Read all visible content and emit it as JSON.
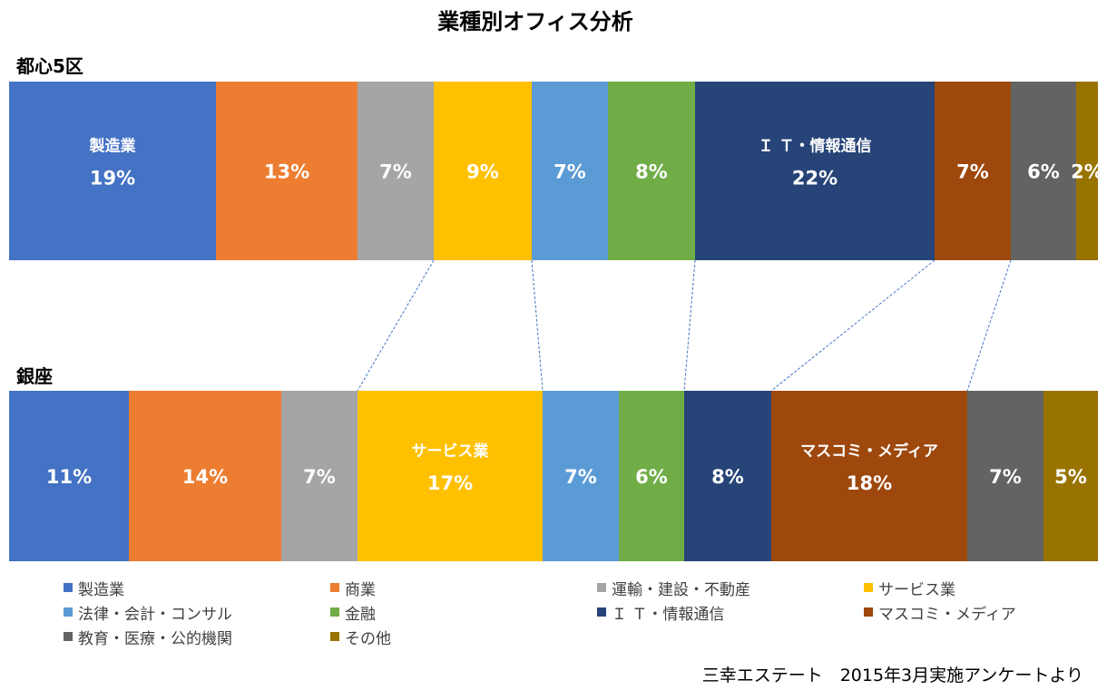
{
  "chart_data": {
    "type": "stacked-bar-100",
    "title": "業種別オフィス分析",
    "categories": [
      "製造業",
      "商業",
      "運輸・建設・不動産",
      "サービス業",
      "法律・会計・コンサル",
      "金融",
      "Ｉ Ｔ・情報通信",
      "マスコミ・メディア",
      "教育・医療・公的機関",
      "その他"
    ],
    "colors": [
      "#4472C4",
      "#ED7D31",
      "#A5A5A5",
      "#FFC000",
      "#5B9BD5",
      "#70AD47",
      "#264478",
      "#9E480E",
      "#636363",
      "#997300"
    ],
    "series": [
      {
        "name": "都心5区",
        "values": [
          19,
          13,
          7,
          9,
          7,
          8,
          22,
          7,
          6,
          2
        ],
        "labels": [
          "19%",
          "13%",
          "7%",
          "9%",
          "7%",
          "8%",
          "22%",
          "7%",
          "6%",
          "2%"
        ],
        "highlight_labels": {
          "0": "製造業",
          "6": "Ｉ Ｔ・情報通信"
        }
      },
      {
        "name": "銀座",
        "values": [
          11,
          14,
          7,
          17,
          7,
          6,
          8,
          18,
          7,
          5
        ],
        "labels": [
          "11%",
          "14%",
          "7%",
          "17%",
          "7%",
          "6%",
          "8%",
          "18%",
          "7%",
          "5%"
        ],
        "highlight_labels": {
          "3": "サービス業",
          "7": "マスコミ・メディア"
        }
      }
    ],
    "legend_position": "bottom"
  },
  "source_note": "三幸エステート　2015年3月実施アンケートより"
}
